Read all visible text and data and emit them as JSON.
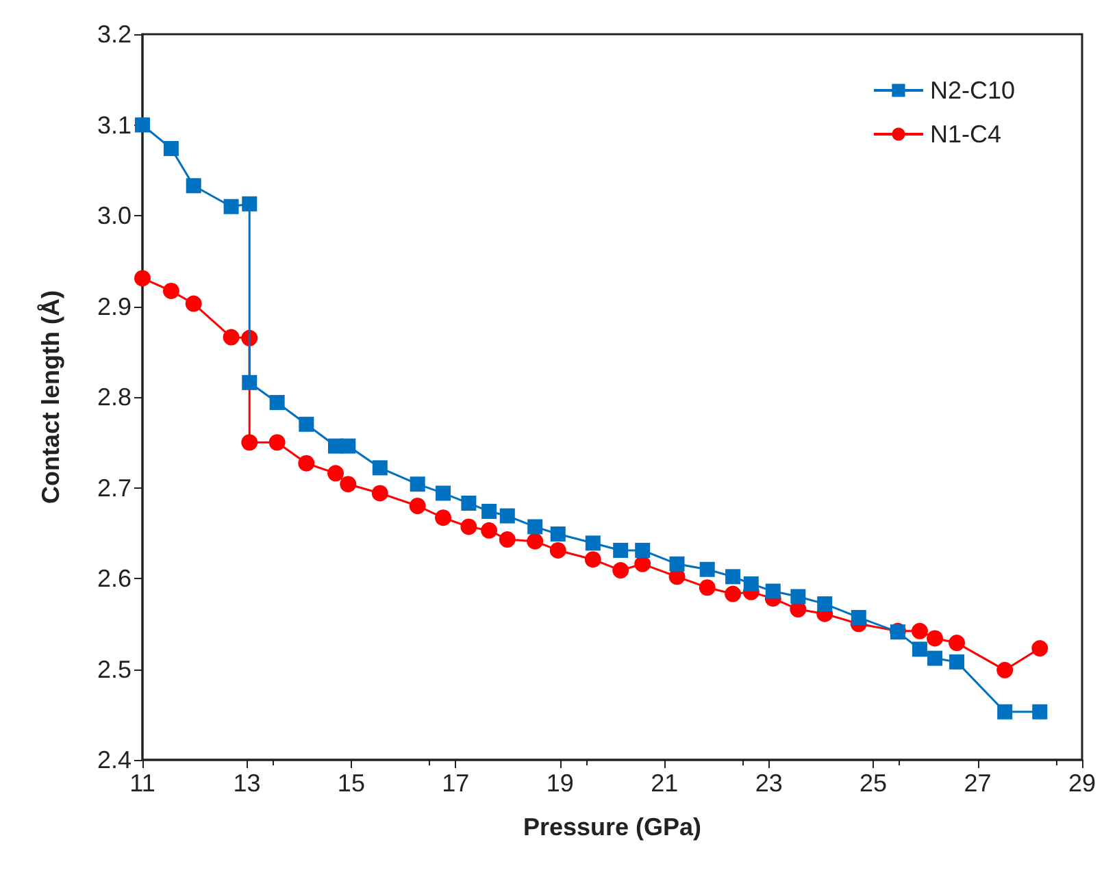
{
  "chart_data": {
    "type": "line",
    "xlabel": "Pressure (GPa)",
    "ylabel": "Contact length (Å)",
    "x": [
      11.0,
      11.55,
      11.98,
      12.7,
      13.05,
      13.05,
      13.58,
      14.14,
      14.7,
      14.94,
      15.55,
      16.27,
      16.76,
      17.25,
      17.64,
      17.99,
      18.52,
      18.96,
      19.63,
      20.16,
      20.58,
      21.24,
      21.82,
      22.31,
      22.66,
      23.08,
      23.56,
      24.07,
      24.72,
      25.47,
      25.89,
      26.18,
      26.6,
      27.52,
      28.19
    ],
    "series": [
      {
        "name": "N2-C10",
        "color": "#0070c0",
        "marker": "square",
        "values": [
          3.1,
          3.074,
          3.033,
          3.01,
          3.013,
          2.816,
          2.794,
          2.77,
          2.746,
          2.746,
          2.722,
          2.704,
          2.694,
          2.683,
          2.674,
          2.669,
          2.657,
          2.649,
          2.639,
          2.631,
          2.631,
          2.616,
          2.61,
          2.602,
          2.594,
          2.586,
          2.58,
          2.572,
          2.557,
          2.541,
          2.522,
          2.512,
          2.508,
          2.453,
          2.453
        ]
      },
      {
        "name": "N1-C4",
        "color": "#ff0000",
        "marker": "circle",
        "values": [
          2.931,
          2.917,
          2.903,
          2.866,
          2.865,
          2.75,
          2.75,
          2.727,
          2.716,
          2.704,
          2.694,
          2.68,
          2.667,
          2.657,
          2.653,
          2.643,
          2.641,
          2.631,
          2.621,
          2.609,
          2.616,
          2.602,
          2.59,
          2.583,
          2.585,
          2.578,
          2.566,
          2.561,
          2.55,
          2.542,
          2.542,
          2.534,
          2.529,
          2.499,
          2.523
        ]
      }
    ],
    "xlim": [
      11,
      29
    ],
    "xticks": [
      11,
      13,
      15,
      17,
      19,
      21,
      23,
      25,
      27,
      29
    ],
    "ylim": [
      2.4,
      3.2
    ],
    "yticks": [
      2.4,
      2.5,
      2.6,
      2.7,
      2.8,
      2.9,
      {
        "value": 3,
        "label": "3.0"
      },
      3.1,
      3.2
    ],
    "grid": false,
    "legend": "top right",
    "line_style": "solid"
  }
}
